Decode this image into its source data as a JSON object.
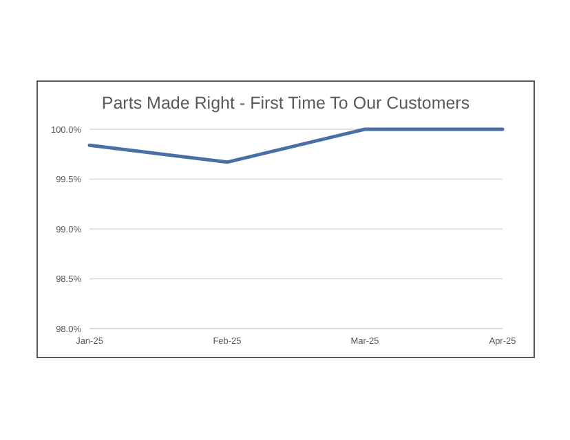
{
  "chart_data": {
    "type": "line",
    "title": "Parts Made Right - First Time To Our Customers",
    "categories": [
      "Jan-25",
      "Feb-25",
      "Mar-25",
      "Apr-25"
    ],
    "series": [
      {
        "color": "#4a6fa5",
        "values": [
          99.84,
          99.67,
          100,
          100
        ]
      }
    ],
    "ylim": [
      98,
      100
    ],
    "yticks": [
      {
        "value": 98,
        "label": "98.0%"
      },
      {
        "value": 98.5,
        "label": "98.5%"
      },
      {
        "value": 99,
        "label": "99.0%"
      },
      {
        "value": 99.5,
        "label": "99.5%"
      },
      {
        "value": 100,
        "label": "100.0%"
      }
    ],
    "grid": "y",
    "marker": "none",
    "line_style": "solid"
  }
}
